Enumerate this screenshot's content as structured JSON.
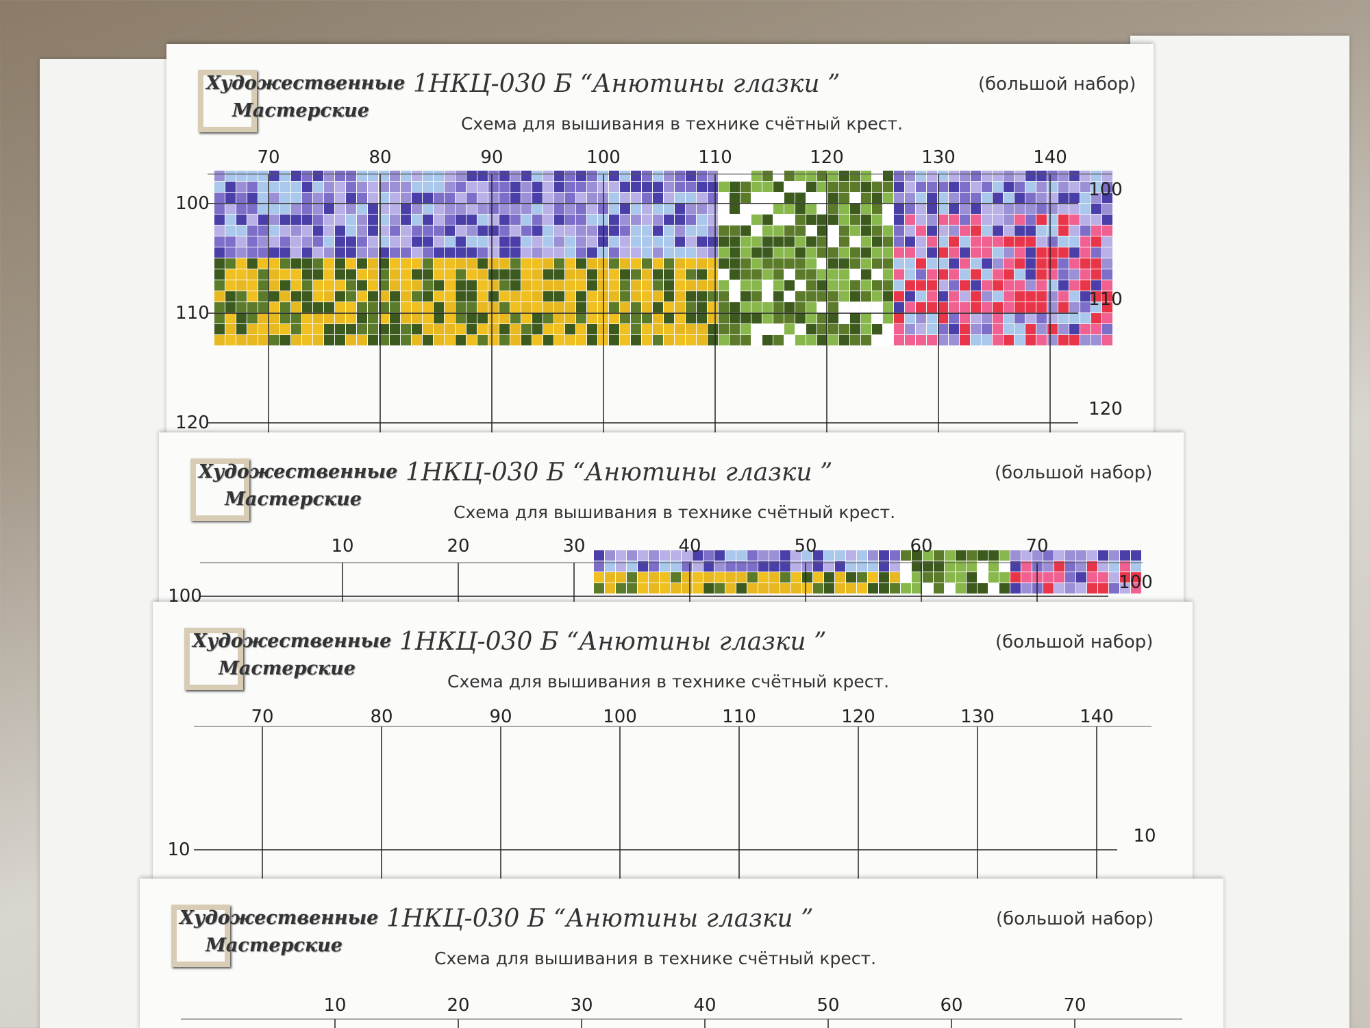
{
  "sheets": [
    {
      "logo": [
        "Художественные",
        "Мастерские"
      ],
      "title": "1НКЦ-030 Б “Анютины глазки ”",
      "note": "(большой набор)",
      "subtitle": "Схема для вышивания в технике счётный крест.",
      "columns": [
        "70",
        "80",
        "90",
        "100",
        "110",
        "120",
        "130",
        "140"
      ],
      "rows_left": [
        "100",
        "110",
        "120"
      ],
      "rows_right": [
        "100",
        "110",
        "120"
      ]
    },
    {
      "logo": [
        "Художественные",
        "Мастерские"
      ],
      "title": "1НКЦ-030 Б “Анютины глазки ”",
      "note": "(большой набор)",
      "subtitle": "Схема для вышивания в технике счётный крест.",
      "columns": [
        "10",
        "20",
        "30",
        "40",
        "50",
        "60",
        "70"
      ],
      "rows_left": [
        "100"
      ],
      "rows_right": [
        "100"
      ]
    },
    {
      "logo": [
        "Художественные",
        "Мастерские"
      ],
      "title": "1НКЦ-030 Б “Анютины глазки ”",
      "note": "(большой набор)",
      "subtitle": "Схема для вышивания в технике счётный крест.",
      "columns": [
        "70",
        "80",
        "90",
        "100",
        "110",
        "120",
        "130",
        "140"
      ],
      "rows_left": [
        "10"
      ],
      "rows_right": [
        "10"
      ]
    },
    {
      "logo": [
        "Художественные",
        "Мастерские"
      ],
      "title": "1НКЦ-030 Б “Анютины глазки ”",
      "note": "(большой набор)",
      "subtitle": "Схема для вышивания в технике счётный крест.",
      "columns": [
        "10",
        "20",
        "30",
        "40",
        "50",
        "60",
        "70"
      ],
      "rows_left": [],
      "rows_right": []
    }
  ]
}
